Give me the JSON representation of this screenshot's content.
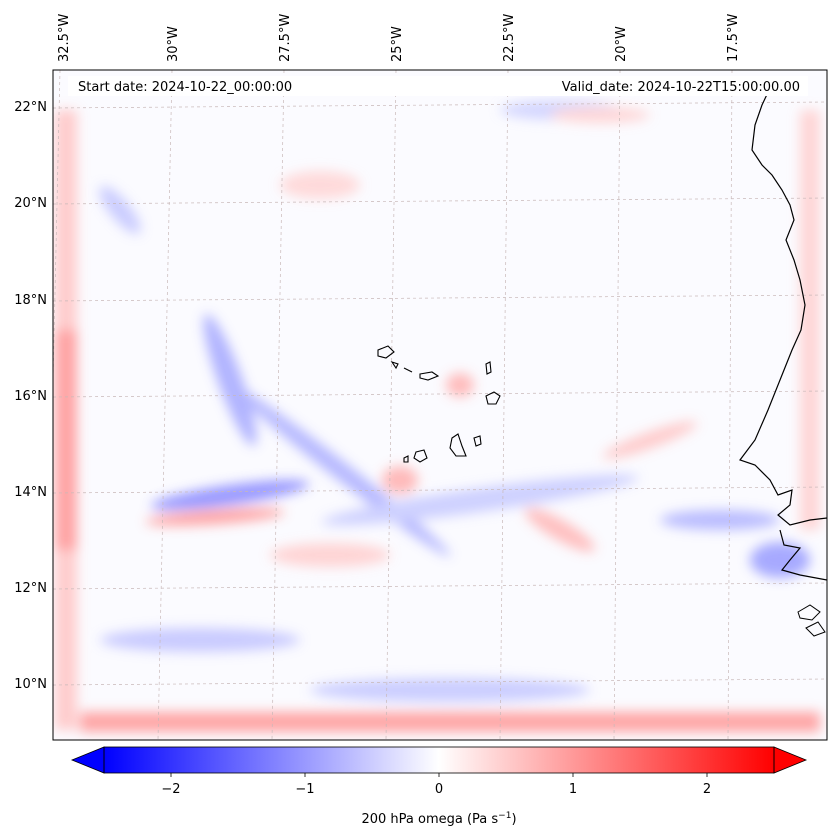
{
  "header": {
    "start_date": "Start date: 2024-10-22_00:00:00",
    "valid_date": "Valid_date: 2024-10-22T15:00:00.00"
  },
  "longitude_labels": [
    "32.5°W",
    "30°W",
    "27.5°W",
    "25°W",
    "22.5°W",
    "20°W",
    "17.5°W"
  ],
  "latitude_labels": [
    "22°N",
    "20°N",
    "18°N",
    "16°N",
    "14°N",
    "12°N",
    "10°N"
  ],
  "colorbar": {
    "tick_labels": [
      "−2",
      "−1",
      "0",
      "1",
      "2"
    ],
    "range": [
      -2.75,
      2.75
    ],
    "low_color": "#0000ff",
    "mid_color": "#ffffff",
    "high_color": "#ff0000",
    "label": "200 hPa omega (Pa s",
    "label_exponent": "−1",
    "label_close": ")"
  },
  "map": {
    "frame_color": "#000000",
    "grid_color": "#c8b8b8",
    "coastline_color": "#000000"
  }
}
